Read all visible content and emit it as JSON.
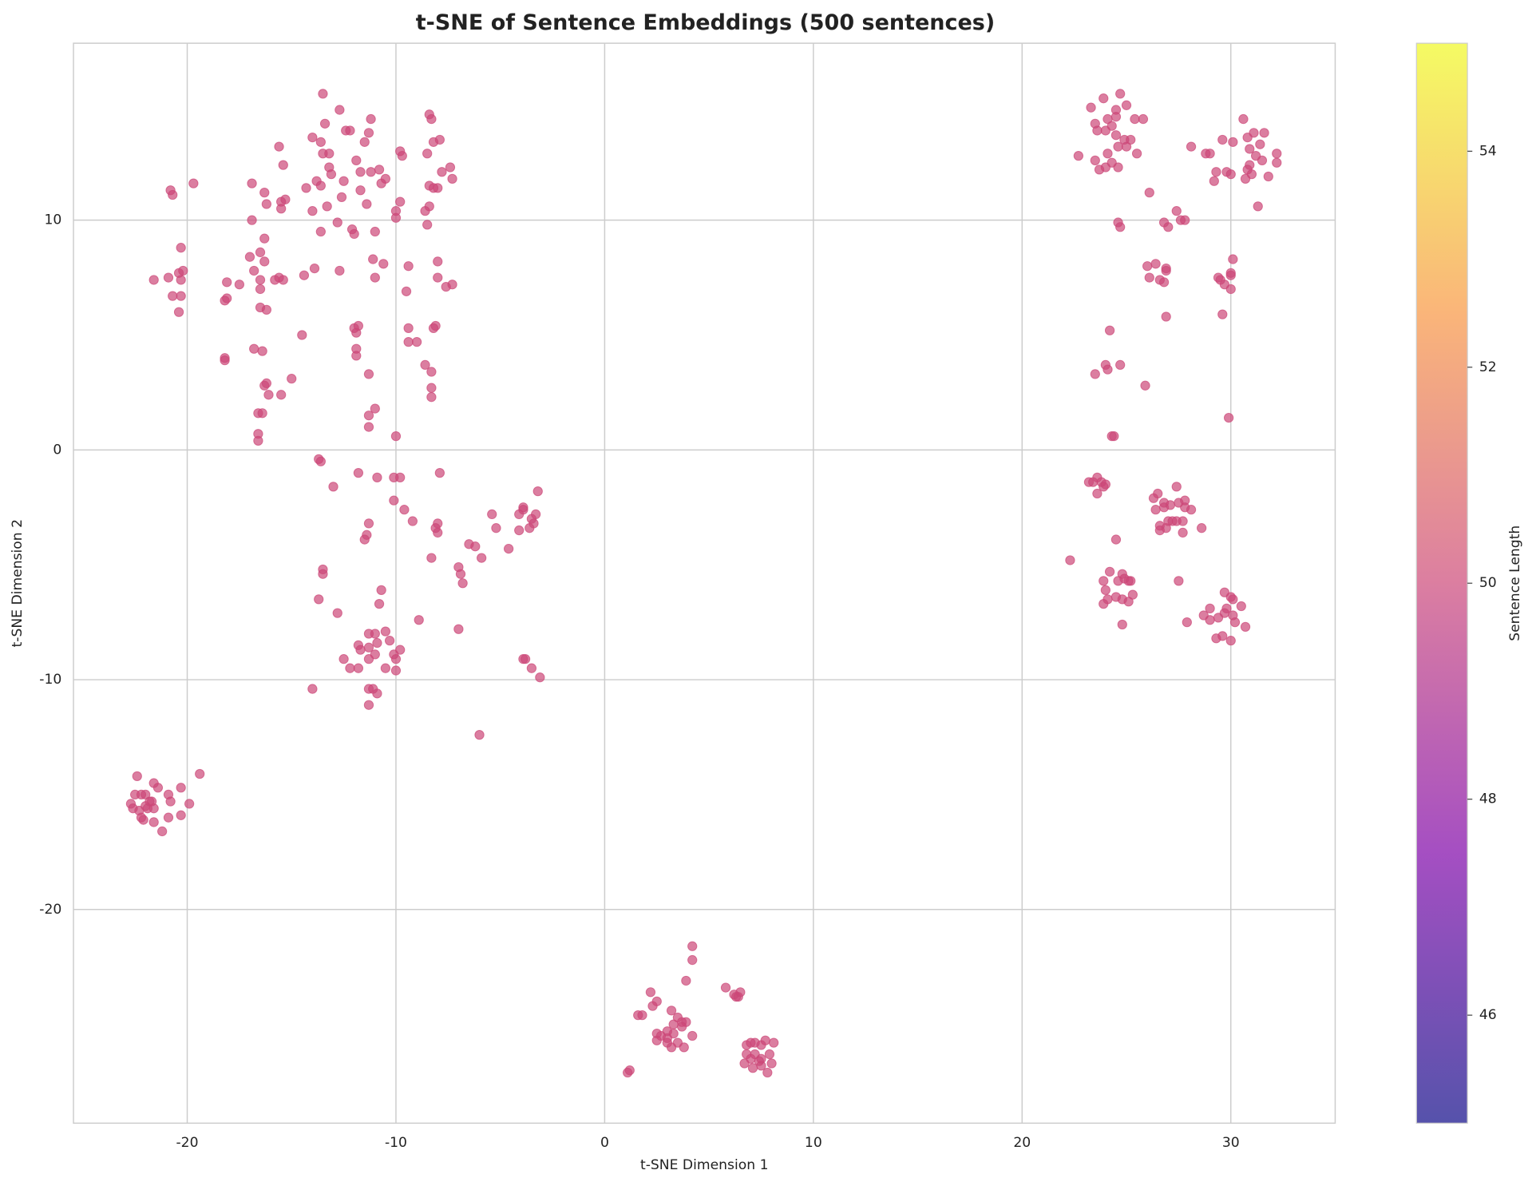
{
  "chart_data": {
    "type": "scatter",
    "title": "t-SNE of Sentence Embeddings (500 sentences)",
    "x_label": "t-SNE Dimension 1",
    "y_label": "t-SNE Dimension 2",
    "xlim": [
      -25.45,
      35.0
    ],
    "ylim": [
      -29.3,
      17.7
    ],
    "xticks": [
      -20,
      -10,
      0,
      10,
      20,
      30
    ],
    "yticks": [
      -20,
      -10,
      0,
      10
    ],
    "grid": true,
    "colormap": "plasma",
    "alpha": 0.7,
    "color_value": 50,
    "colorbar": {
      "label": "Sentence Length",
      "lim": [
        45,
        55
      ],
      "ticks": [
        46,
        48,
        50,
        52,
        54
      ]
    },
    "x": [
      -22.4,
      -22.5,
      -22.2,
      -22.0,
      -21.6,
      -21.4,
      -20.9,
      -20.3,
      -19.4,
      -22.7,
      -22.6,
      -22.3,
      -22.2,
      -22.0,
      -21.8,
      -21.6,
      -21.9,
      -21.6,
      -21.2,
      -20.9,
      -20.8,
      -20.3,
      -19.9,
      -22.1,
      -21.7,
      4.2,
      4.2,
      3.9,
      2.2,
      2.3,
      2.5,
      1.8,
      1.6,
      3.2,
      3.5,
      3.7,
      3.9,
      3.3,
      2.5,
      2.7,
      3.0,
      3.3,
      3.7,
      4.2,
      2.5,
      3.0,
      3.2,
      3.5,
      3.8,
      3.0,
      1.2,
      1.1,
      5.8,
      6.2,
      6.4,
      6.5,
      6.3,
      6.8,
      7.0,
      7.2,
      7.5,
      7.7,
      8.1,
      6.8,
      7.0,
      7.2,
      7.5,
      7.9,
      6.7,
      7.1,
      7.5,
      8.0,
      7.8,
      7.4,
      -20.8,
      -20.7,
      -19.7,
      -20.3,
      -21.6,
      -20.9,
      -20.4,
      -20.2,
      -20.3,
      -20.7,
      -20.3,
      -20.4,
      -18.1,
      -18.2,
      -18.1,
      -17.5,
      -17.0,
      -16.8,
      -16.5,
      -16.5,
      -16.3,
      -16.5,
      -16.3,
      -16.9,
      -16.9,
      -16.3,
      -16.2,
      -15.6,
      -15.4,
      -15.5,
      -15.3,
      -15.5,
      -14.3,
      -13.8,
      -13.6,
      -14.0,
      -15.6,
      -15.4,
      -15.8,
      -14.4,
      -13.9,
      -16.5,
      -16.2,
      -18.2,
      -18.2,
      -16.8,
      -16.4,
      -14.5,
      -16.3,
      -16.1,
      -16.2,
      -15.5,
      -15.0,
      -16.6,
      -16.4,
      -16.6,
      -16.6,
      -13.5,
      -12.7,
      -14.0,
      -13.4,
      -13.6,
      -13.2,
      -13.5,
      -13.2,
      -13.1,
      -12.5,
      -12.4,
      -12.2,
      -11.9,
      -11.7,
      -11.7,
      -11.5,
      -11.3,
      -11.2,
      -11.2,
      -11.4,
      -10.8,
      -10.7,
      -10.5,
      -13.3,
      -12.8,
      -13.6,
      -12.6,
      -12.1,
      -12.0,
      -11.0,
      -10.0,
      -10.0,
      -9.8,
      -10.6,
      -11.1,
      -11.0,
      -12.7,
      -9.8,
      -9.7,
      -9.4,
      -9.5,
      -8.5,
      -8.4,
      -8.3,
      -8.2,
      -7.9,
      -8.6,
      -8.4,
      -8.4,
      -8.2,
      -8.0,
      -7.8,
      -7.4,
      -7.3,
      -8.5,
      -8.0,
      -8.0,
      -7.6,
      -7.3,
      -8.2,
      -8.1,
      -9.4,
      -9.4,
      -9.0,
      -8.6,
      -8.3,
      -8.3,
      -8.3,
      -12.0,
      -11.8,
      -11.9,
      -11.9,
      -11.9,
      -11.3,
      -11.3,
      -11.0,
      -11.3,
      -10.0,
      -13.7,
      -13.6,
      -13.0,
      -11.8,
      -10.9,
      -10.1,
      -9.8,
      -7.9,
      -10.1,
      -9.6,
      -9.2,
      -11.3,
      -11.4,
      -11.5,
      -8.0,
      -8.0,
      -8.1,
      -5.4,
      -5.2,
      -4.1,
      -3.9,
      -3.9,
      -3.5,
      -3.3,
      -3.4,
      -3.6,
      -4.1,
      -3.2,
      -6.5,
      -6.2,
      -5.9,
      -4.6,
      -8.3,
      -7.0,
      -6.9,
      -6.8,
      -13.5,
      -13.5,
      -13.7,
      -12.8,
      -10.7,
      -10.8,
      -8.9,
      -7.0,
      -11.3,
      -11.0,
      -10.5,
      -10.3,
      -11.8,
      -11.7,
      -11.3,
      -10.9,
      -10.1,
      -9.8,
      -10.0,
      -11.0,
      -11.3,
      -12.5,
      -12.2,
      -11.8,
      -10.5,
      -10.0,
      -11.3,
      -11.1,
      -10.9,
      -14.0,
      -11.3,
      -3.9,
      -3.8,
      -3.5,
      -3.1,
      -6.0,
      23.3,
      23.9,
      24.5,
      24.7,
      25.0,
      23.5,
      24.1,
      24.5,
      25.4,
      25.8,
      23.6,
      24.0,
      24.3,
      24.5,
      24.9,
      25.2,
      24.6,
      25.0,
      24.1,
      25.5,
      22.7,
      23.5,
      24.3,
      24.0,
      23.7,
      24.6,
      24.6,
      24.7,
      26.1,
      26.8,
      27.4,
      27.0,
      27.6,
      27.8,
      28.1,
      28.8,
      29.0,
      29.6,
      30.1,
      30.6,
      30.8,
      31.1,
      31.6,
      31.4,
      30.9,
      31.2,
      30.9,
      30.8,
      31.0,
      31.5,
      32.2,
      32.2,
      31.8,
      30.7,
      30.0,
      29.3,
      29.8,
      29.2,
      31.3,
      26.0,
      26.4,
      26.9,
      26.9,
      26.1,
      26.6,
      26.8,
      29.4,
      29.5,
      29.7,
      30.0,
      30.0,
      30.0,
      30.1,
      26.9,
      29.6,
      24.2,
      24.0,
      24.1,
      24.7,
      23.5,
      25.9,
      29.9,
      24.3,
      24.4,
      23.2,
      23.4,
      23.6,
      23.8,
      24.0,
      23.9,
      23.6,
      24.5,
      22.3,
      26.3,
      26.5,
      26.8,
      27.1,
      27.4,
      27.5,
      27.8,
      28.1,
      26.4,
      26.8,
      27.8,
      26.6,
      27.0,
      27.2,
      27.4,
      27.7,
      26.6,
      26.9,
      27.7,
      28.6,
      24.2,
      24.8,
      24.6,
      24.9,
      25.2,
      23.9,
      24.0,
      24.5,
      24.8,
      25.3,
      25.1,
      24.1,
      23.9,
      24.8,
      27.5,
      27.9,
      28.7,
      29.0,
      29.0,
      29.4,
      29.8,
      29.7,
      30.0,
      30.1,
      29.7,
      30.1,
      30.2,
      30.5,
      30.7,
      29.3,
      29.6,
      30.0,
      25.1
    ],
    "values": [
      -14.2,
      -15.0,
      -15.0,
      -15.0,
      -14.5,
      -14.7,
      -15.0,
      -14.7,
      -14.1,
      -15.4,
      -15.6,
      -15.7,
      -16.0,
      -15.5,
      -15.3,
      -15.6,
      -15.6,
      -16.2,
      -16.6,
      -16.0,
      -15.3,
      -15.9,
      -15.4,
      -16.1,
      -15.3,
      -21.6,
      -22.2,
      -23.1,
      -23.6,
      -24.2,
      -24.0,
      -24.6,
      -24.6,
      -24.4,
      -24.7,
      -24.9,
      -24.9,
      -25.0,
      -25.4,
      -25.5,
      -25.3,
      -25.4,
      -25.1,
      -25.5,
      -25.7,
      -25.8,
      -26.0,
      -25.8,
      -26.0,
      -25.6,
      -27.0,
      -27.1,
      -23.4,
      -23.7,
      -23.8,
      -23.6,
      -23.8,
      -25.9,
      -25.8,
      -25.8,
      -25.9,
      -25.7,
      -25.8,
      -26.3,
      -26.5,
      -26.3,
      -26.5,
      -26.3,
      -26.7,
      -26.9,
      -26.8,
      -26.7,
      -27.1,
      -26.6,
      11.3,
      11.1,
      11.6,
      8.8,
      7.4,
      7.5,
      7.7,
      7.8,
      7.4,
      6.7,
      6.7,
      6.0,
      7.3,
      6.5,
      6.6,
      7.2,
      8.4,
      7.8,
      7.4,
      7.0,
      8.2,
      8.6,
      9.2,
      10.0,
      11.6,
      11.2,
      10.7,
      13.2,
      12.4,
      10.8,
      10.9,
      10.5,
      11.4,
      11.7,
      11.5,
      10.4,
      7.5,
      7.4,
      7.4,
      7.6,
      7.9,
      6.2,
      6.1,
      4.0,
      3.9,
      4.4,
      4.3,
      5.0,
      2.8,
      2.4,
      2.9,
      2.4,
      3.1,
      1.6,
      1.6,
      0.7,
      0.4,
      15.5,
      14.8,
      13.6,
      14.2,
      13.4,
      12.9,
      12.9,
      12.3,
      12.0,
      11.7,
      13.9,
      13.9,
      12.6,
      12.1,
      11.3,
      13.4,
      13.8,
      14.4,
      12.1,
      10.7,
      12.2,
      11.6,
      11.8,
      10.6,
      9.9,
      9.5,
      11.0,
      9.6,
      9.4,
      9.5,
      10.4,
      10.1,
      10.8,
      8.1,
      8.3,
      7.5,
      7.8,
      13.0,
      12.8,
      8.0,
      6.9,
      12.9,
      14.6,
      14.4,
      13.4,
      13.5,
      10.4,
      10.6,
      11.5,
      11.4,
      11.4,
      12.1,
      12.3,
      11.8,
      9.8,
      8.2,
      7.5,
      7.1,
      7.2,
      5.3,
      5.4,
      5.3,
      4.7,
      4.7,
      3.7,
      3.4,
      2.7,
      2.3,
      5.3,
      5.4,
      5.1,
      4.4,
      4.1,
      3.3,
      1.5,
      1.8,
      1.0,
      0.6,
      -0.4,
      -0.5,
      -1.6,
      -1.0,
      -1.2,
      -1.2,
      -1.2,
      -1.0,
      -2.2,
      -2.6,
      -3.1,
      -3.2,
      -3.7,
      -3.9,
      -3.2,
      -3.6,
      -3.4,
      -2.8,
      -3.4,
      -2.8,
      -2.6,
      -2.5,
      -3.0,
      -2.8,
      -3.2,
      -3.4,
      -3.5,
      -1.8,
      -4.1,
      -4.2,
      -4.7,
      -4.3,
      -4.7,
      -5.1,
      -5.4,
      -5.8,
      -5.2,
      -5.4,
      -6.5,
      -7.1,
      -6.1,
      -6.7,
      -7.4,
      -7.8,
      -8.0,
      -8.0,
      -7.9,
      -8.3,
      -8.5,
      -8.7,
      -8.6,
      -8.4,
      -8.9,
      -8.7,
      -9.1,
      -8.9,
      -9.1,
      -9.1,
      -9.5,
      -9.5,
      -9.5,
      -9.6,
      -10.4,
      -10.4,
      -10.6,
      -10.4,
      -11.1,
      -9.1,
      -9.1,
      -9.5,
      -9.9,
      -12.4,
      14.9,
      15.3,
      14.8,
      15.5,
      15.0,
      14.2,
      14.4,
      14.5,
      14.4,
      14.4,
      13.9,
      13.9,
      14.1,
      13.7,
      13.5,
      13.5,
      13.2,
      13.2,
      12.9,
      12.9,
      12.8,
      12.6,
      12.5,
      12.3,
      12.2,
      12.3,
      9.9,
      9.7,
      11.2,
      9.9,
      10.4,
      9.7,
      10.0,
      10.0,
      13.2,
      12.9,
      12.9,
      13.5,
      13.4,
      14.4,
      13.6,
      13.8,
      13.8,
      13.3,
      13.1,
      12.8,
      12.4,
      12.2,
      12.0,
      12.6,
      12.9,
      12.5,
      11.9,
      11.8,
      12.0,
      12.1,
      12.1,
      11.7,
      10.6,
      8.0,
      8.1,
      7.8,
      7.9,
      7.5,
      7.4,
      7.3,
      7.5,
      7.4,
      7.2,
      7.0,
      7.6,
      7.7,
      8.3,
      5.8,
      5.9,
      5.2,
      3.7,
      3.5,
      3.7,
      3.3,
      2.8,
      1.4,
      0.6,
      0.6,
      -1.4,
      -1.4,
      -1.2,
      -1.4,
      -1.5,
      -1.6,
      -1.9,
      -3.9,
      -4.8,
      -2.1,
      -1.9,
      -2.3,
      -2.4,
      -1.6,
      -2.3,
      -2.2,
      -2.6,
      -2.6,
      -2.5,
      -2.5,
      -3.3,
      -3.1,
      -3.1,
      -3.1,
      -3.1,
      -3.5,
      -3.4,
      -3.6,
      -3.4,
      -5.3,
      -5.4,
      -5.7,
      -5.6,
      -5.7,
      -5.7,
      -6.1,
      -6.4,
      -6.5,
      -6.3,
      -6.6,
      -6.5,
      -6.7,
      -7.6,
      -5.7,
      -7.5,
      -7.2,
      -6.9,
      -7.4,
      -7.3,
      -6.9,
      -6.2,
      -6.4,
      -6.5,
      -7.1,
      -7.2,
      -7.5,
      -6.8,
      -7.7,
      -8.2,
      -8.1,
      -8.3,
      -5.7
    ]
  }
}
